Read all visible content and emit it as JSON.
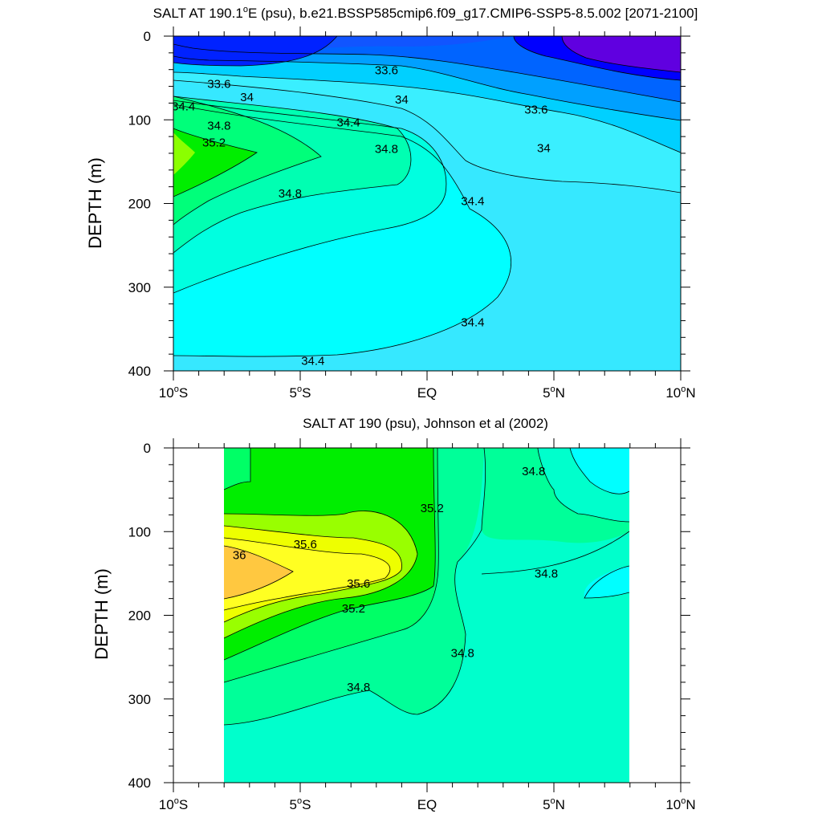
{
  "chart_data": [
    {
      "type": "contour",
      "title": "SALT AT 190.1°E (psu), b.e21.BSSP585cmip6.f09_g17.CMIP6-SSP5-8.5.002 [2071-2100]",
      "title_main": "SALT AT 190.1",
      "title_deg": "o",
      "title_rest": "E (psu), b.e21.BSSP585cmip6.f09_g17.CMIP6-SSP5-8.5.002 [2071-2100]",
      "ylabel": "DEPTH (m)",
      "xlabel": "",
      "xlim": [
        -10,
        10
      ],
      "ylim": [
        400,
        0
      ],
      "y_reversed": true,
      "yticks": [
        "0",
        "100",
        "200",
        "300",
        "400"
      ],
      "xticks": [
        {
          "value": -10,
          "num": "10",
          "hemi": "S"
        },
        {
          "value": -5,
          "num": "5",
          "hemi": "S"
        },
        {
          "value": 0,
          "num": "EQ",
          "hemi": ""
        },
        {
          "value": 5,
          "num": "5",
          "hemi": "N"
        },
        {
          "value": 10,
          "num": "10",
          "hemi": "N"
        }
      ],
      "data_extent_lat": [
        -10,
        10
      ],
      "data_extent_depth": [
        5,
        400
      ],
      "contour_interval": 0.2,
      "levels": [
        33.2,
        33.4,
        33.6,
        33.8,
        34.0,
        34.2,
        34.4,
        34.6,
        34.8,
        35.0,
        35.2,
        35.4
      ],
      "contour_labels": [
        {
          "value": "33.6",
          "lat": -8.2,
          "depth": 57
        },
        {
          "value": "33.6",
          "lat": -1.6,
          "depth": 41
        },
        {
          "value": "33.6",
          "lat": 4.3,
          "depth": 88
        },
        {
          "value": "34",
          "lat": -7.1,
          "depth": 73
        },
        {
          "value": "34",
          "lat": -1.0,
          "depth": 76
        },
        {
          "value": "34",
          "lat": 4.6,
          "depth": 134
        },
        {
          "value": "34.4",
          "lat": -9.6,
          "depth": 84
        },
        {
          "value": "34.4",
          "lat": -3.1,
          "depth": 103
        },
        {
          "value": "34.4",
          "lat": 1.8,
          "depth": 197
        },
        {
          "value": "34.4",
          "lat": 1.8,
          "depth": 342
        },
        {
          "value": "34.4",
          "lat": -4.5,
          "depth": 388
        },
        {
          "value": "34.8",
          "lat": -8.2,
          "depth": 107
        },
        {
          "value": "34.8",
          "lat": -1.6,
          "depth": 135
        },
        {
          "value": "34.8",
          "lat": -5.4,
          "depth": 188
        },
        {
          "value": "35.2",
          "lat": -8.4,
          "depth": 127
        }
      ]
    },
    {
      "type": "contour",
      "title": "SALT AT 190 (psu), Johnson et al (2002)",
      "ylabel": "DEPTH (m)",
      "xlabel": "",
      "xlim": [
        -10,
        10
      ],
      "ylim": [
        400,
        0
      ],
      "y_reversed": true,
      "yticks": [
        "0",
        "100",
        "200",
        "300",
        "400"
      ],
      "xticks": [
        {
          "value": -10,
          "num": "10",
          "hemi": "S"
        },
        {
          "value": -5,
          "num": "5",
          "hemi": "S"
        },
        {
          "value": 0,
          "num": "EQ",
          "hemi": ""
        },
        {
          "value": 5,
          "num": "5",
          "hemi": "N"
        },
        {
          "value": 10,
          "num": "10",
          "hemi": "N"
        }
      ],
      "data_extent_lat": [
        -8,
        8
      ],
      "data_extent_depth": [
        5,
        400
      ],
      "contour_interval": 0.2,
      "levels": [
        34.6,
        34.8,
        35.0,
        35.2,
        35.4,
        35.6,
        35.8,
        36.0
      ],
      "contour_labels": [
        {
          "value": "34.8",
          "lat": 4.2,
          "depth": 28
        },
        {
          "value": "34.8",
          "lat": 4.7,
          "depth": 150
        },
        {
          "value": "34.8",
          "lat": 1.4,
          "depth": 245
        },
        {
          "value": "34.8",
          "lat": -2.7,
          "depth": 286
        },
        {
          "value": "35.2",
          "lat": 0.2,
          "depth": 72
        },
        {
          "value": "35.2",
          "lat": -2.9,
          "depth": 192
        },
        {
          "value": "35.6",
          "lat": -4.8,
          "depth": 115
        },
        {
          "value": "35.6",
          "lat": -2.7,
          "depth": 162
        },
        {
          "value": "36",
          "lat": -7.4,
          "depth": 128
        }
      ]
    }
  ]
}
